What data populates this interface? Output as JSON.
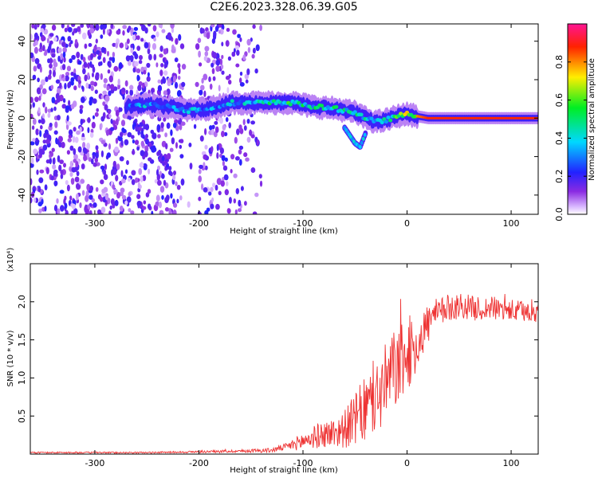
{
  "title": "C2E6.2023.328.06.39.G05",
  "colors": {
    "signal": "#ee3333",
    "text": "#000000"
  },
  "chart_data": [
    {
      "type": "heatmap",
      "xlabel": "Height of straight line (km)",
      "ylabel": "Frequency (Hz)",
      "xlim": [
        -362,
        126
      ],
      "ylim": [
        -50,
        49
      ],
      "xticks": [
        -300,
        -200,
        -100,
        0,
        100
      ],
      "xtick_labels": [
        "-300",
        "-200",
        "-100",
        "0",
        "100"
      ],
      "yticks": [
        -40,
        -20,
        0,
        20,
        40
      ],
      "ytick_labels": [
        "-40",
        "-20",
        "0",
        "20",
        "40"
      ],
      "colorbar": {
        "label": "Normalized spectral amplitude",
        "range": [
          0,
          1
        ],
        "ticks": [
          "0.0",
          "0.2",
          "0.4",
          "0.6",
          "0.8"
        ],
        "colormap": "rainbow (white-violet-blue-cyan-green-yellow-red-magenta)"
      },
      "ridge": {
        "description": "dominant frequency trace",
        "x": [
          -270,
          -250,
          -230,
          -210,
          -190,
          -170,
          -150,
          -130,
          -110,
          -90,
          -70,
          -50,
          -40,
          -30,
          -20,
          -10,
          0,
          20,
          60,
          126
        ],
        "freq": [
          6,
          7,
          6,
          4,
          5,
          8,
          8,
          8,
          8,
          6,
          5,
          3,
          0,
          -2,
          -1,
          1,
          2,
          0,
          0,
          0
        ],
        "amplitude": [
          0.35,
          0.4,
          0.35,
          0.45,
          0.35,
          0.4,
          0.45,
          0.5,
          0.55,
          0.5,
          0.5,
          0.5,
          0.45,
          0.45,
          0.5,
          0.6,
          0.7,
          0.85,
          0.85,
          0.85
        ]
      },
      "branch": {
        "description": "lower-frequency secondary feature",
        "x": [
          -60,
          -55,
          -50,
          -45,
          -40
        ],
        "freq": [
          -5,
          -9,
          -13,
          -15,
          -8
        ]
      },
      "grid": false
    },
    {
      "type": "line",
      "xlabel": "Height of straight line (km)",
      "ylabel": "SNR (10 * v/v)",
      "multiplier": "(x10⁴)",
      "xlim": [
        -362,
        126
      ],
      "ylim": [
        0,
        2.5
      ],
      "xticks": [
        -300,
        -200,
        -100,
        0,
        100
      ],
      "xtick_labels": [
        "-300",
        "-200",
        "-100",
        "0",
        "100"
      ],
      "yticks": [
        0.5,
        1.0,
        1.5,
        2.0
      ],
      "ytick_labels": [
        "0.5",
        "1.0",
        "1.5",
        "2.0"
      ],
      "series": [
        {
          "x": [
            -362,
            -300,
            -250,
            -200,
            -160,
            -130,
            -115,
            -100,
            -90,
            -80,
            -70,
            -60,
            -50,
            -40,
            -30,
            -20,
            -15,
            -10,
            0,
            5,
            10,
            15,
            20,
            30,
            40,
            50,
            60,
            70,
            80,
            90,
            100,
            110,
            126
          ],
          "y": [
            0.02,
            0.02,
            0.02,
            0.03,
            0.04,
            0.05,
            0.1,
            0.17,
            0.22,
            0.26,
            0.28,
            0.33,
            0.45,
            0.58,
            0.72,
            0.92,
            1.05,
            1.15,
            1.25,
            1.35,
            1.45,
            1.58,
            1.72,
            1.85,
            1.92,
            1.95,
            1.93,
            1.9,
            1.92,
            1.9,
            1.88,
            1.87,
            1.88
          ],
          "noise": [
            0.01,
            0.01,
            0.01,
            0.015,
            0.02,
            0.03,
            0.05,
            0.12,
            0.15,
            0.18,
            0.2,
            0.25,
            0.35,
            0.45,
            0.5,
            0.55,
            0.55,
            0.55,
            0.45,
            0.4,
            0.35,
            0.3,
            0.28,
            0.2,
            0.18,
            0.18,
            0.16,
            0.16,
            0.16,
            0.15,
            0.15,
            0.15,
            0.15
          ]
        }
      ],
      "grid": false
    }
  ]
}
